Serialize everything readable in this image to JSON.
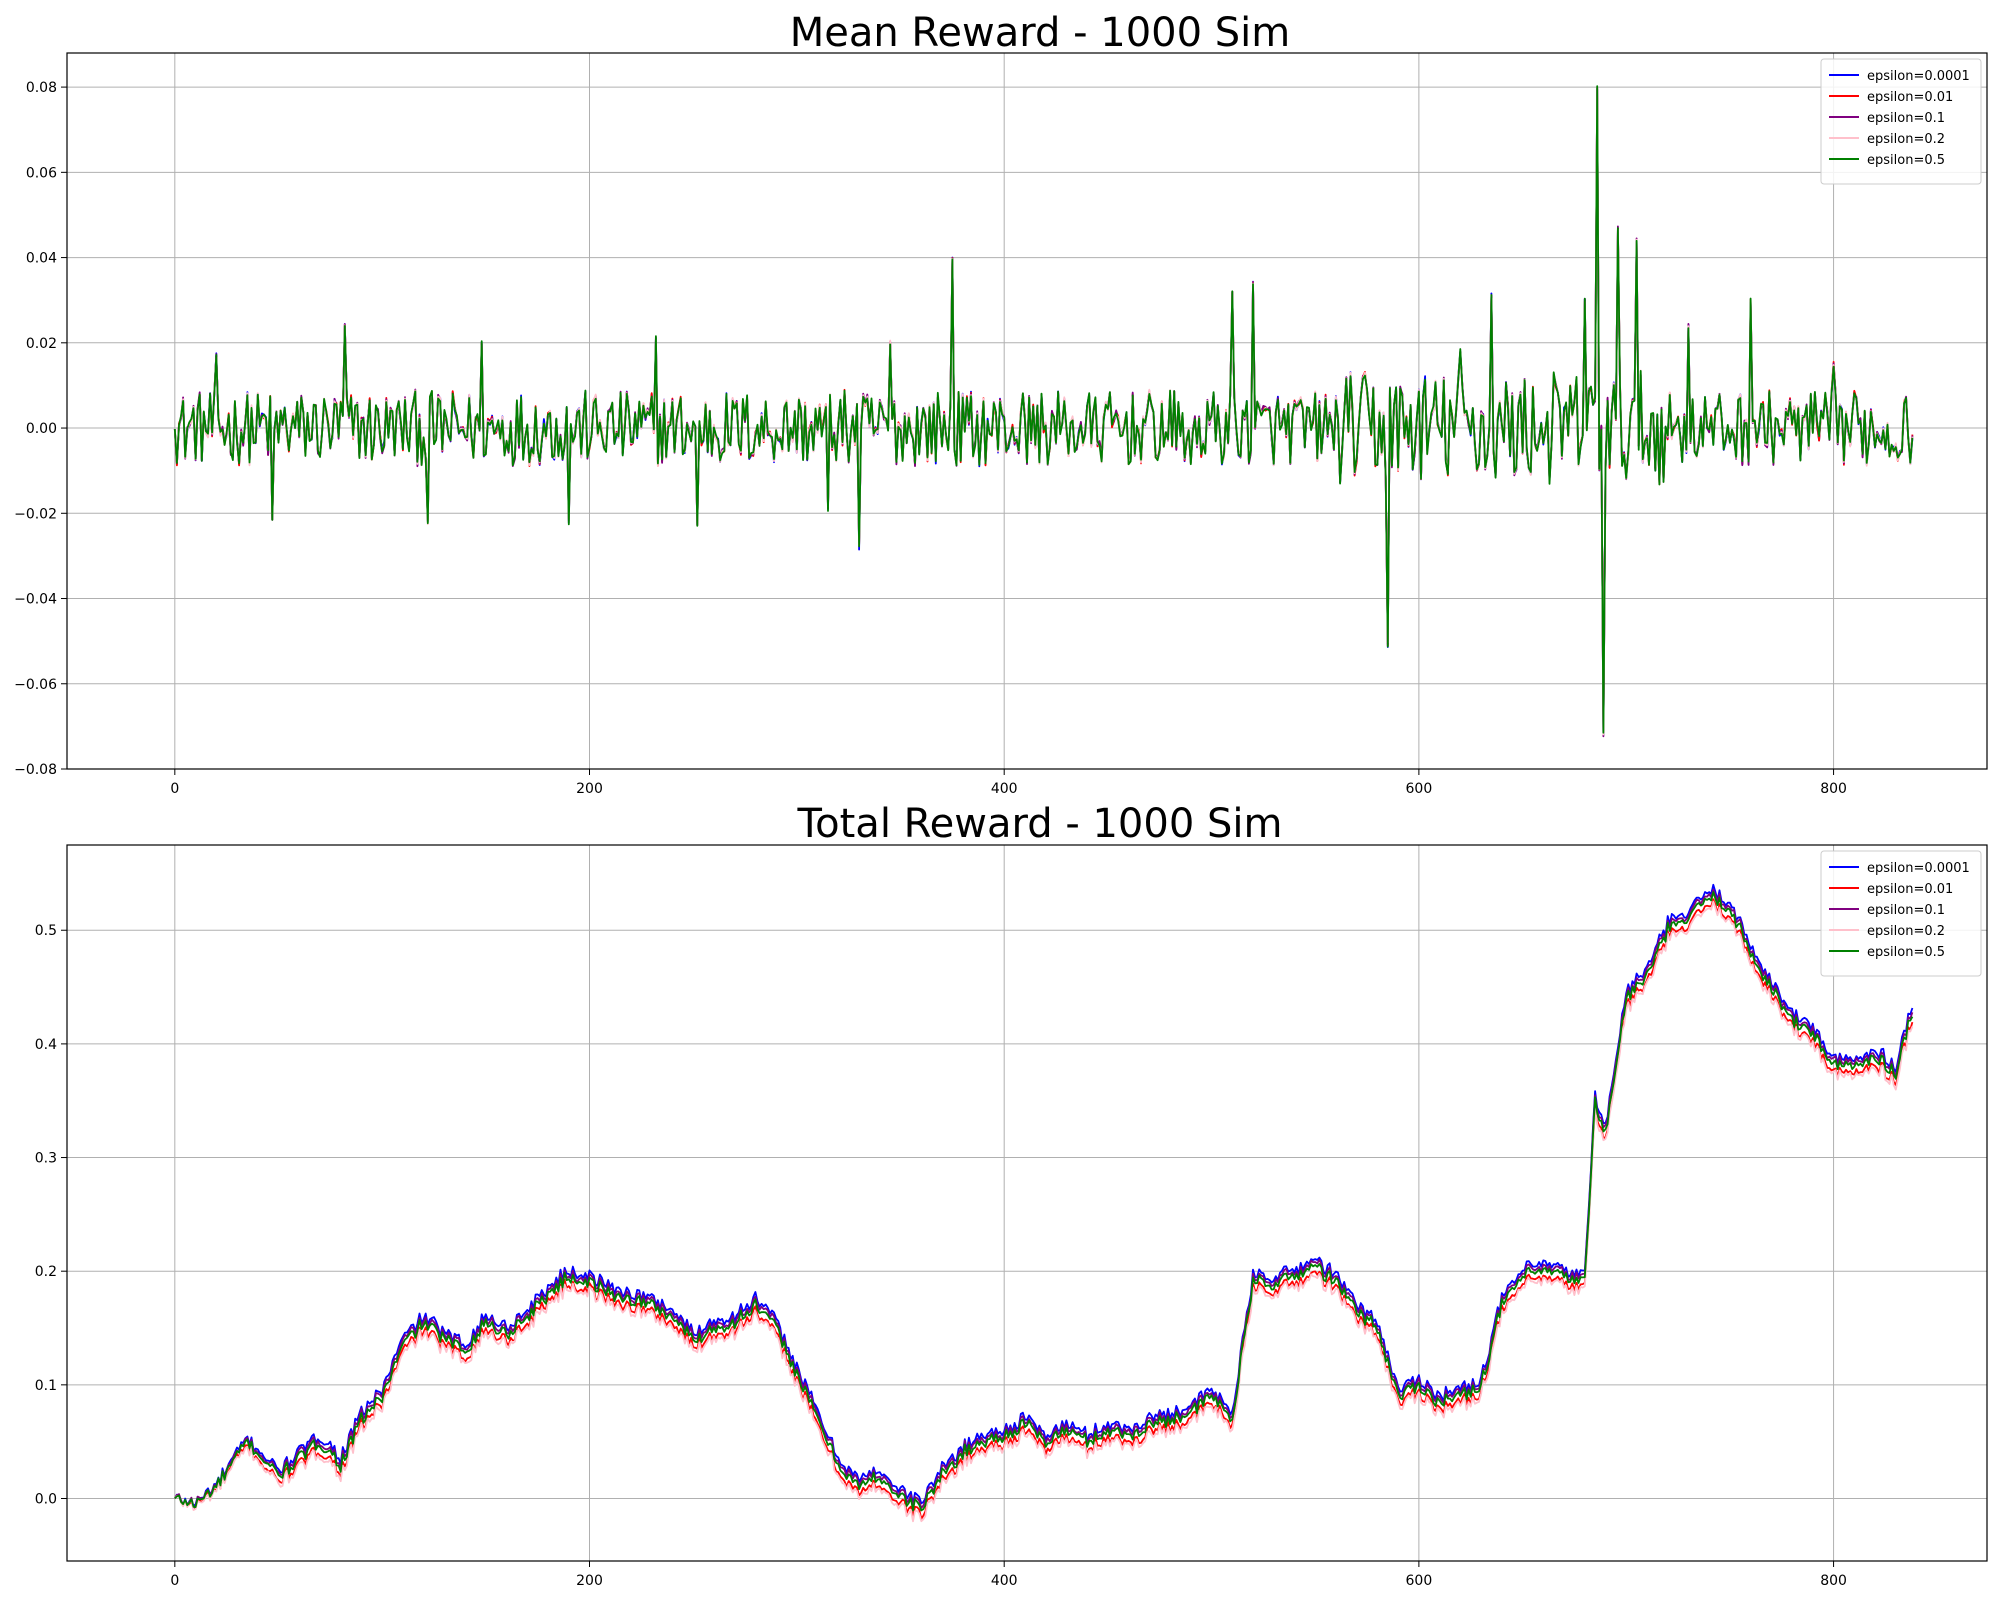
{
  "chart_data": [
    {
      "type": "line",
      "title": "Mean Reward - 1000 Sim",
      "xlabel": "",
      "ylabel": "",
      "xlim": [
        -52,
        874
      ],
      "ylim": [
        -0.08,
        0.088
      ],
      "xticks": [
        0,
        200,
        400,
        600,
        800
      ],
      "yticks": [
        -0.08,
        -0.06,
        -0.04,
        -0.02,
        0.0,
        0.02,
        0.04,
        0.06,
        0.08
      ],
      "ytick_labels": [
        "−0.08",
        "−0.06",
        "−0.04",
        "−0.02",
        "0.00",
        "0.02",
        "0.04",
        "0.06",
        "0.08"
      ],
      "grid": true,
      "legend_position": "top-right",
      "n_points": 839,
      "series": [
        {
          "name": "epsilon=0.0001",
          "color": "#0000ff"
        },
        {
          "name": "epsilon=0.01",
          "color": "#ff0000"
        },
        {
          "name": "epsilon=0.1",
          "color": "#800080"
        },
        {
          "name": "epsilon=0.2",
          "color": "#ffc0cb"
        },
        {
          "name": "epsilon=0.5",
          "color": "#008000"
        }
      ],
      "shape": {
        "x": [
          0,
          20,
          47,
          82,
          122,
          148,
          190,
          232,
          252,
          315,
          330,
          345,
          375,
          490,
          510,
          520,
          585,
          620,
          635,
          680,
          686,
          689,
          696,
          705,
          730,
          760,
          800,
          838
        ],
        "y": [
          0.0,
          0.017,
          -0.022,
          0.024,
          -0.022,
          0.02,
          -0.022,
          0.021,
          -0.023,
          -0.019,
          -0.028,
          0.02,
          0.04,
          -0.008,
          0.032,
          0.034,
          -0.051,
          0.018,
          0.031,
          0.03,
          0.08,
          -0.072,
          0.047,
          0.044,
          0.024,
          0.03,
          0.015,
          -0.002
        ]
      }
    },
    {
      "type": "line",
      "title": "Total Reward - 1000 Sim",
      "xlabel": "",
      "ylabel": "",
      "xlim": [
        -52,
        874
      ],
      "ylim": [
        -0.055,
        0.575
      ],
      "xticks": [
        0,
        200,
        400,
        600,
        800
      ],
      "yticks": [
        0.0,
        0.1,
        0.2,
        0.3,
        0.4,
        0.5
      ],
      "ytick_labels": [
        "0.0",
        "0.1",
        "0.2",
        "0.3",
        "0.4",
        "0.5"
      ],
      "grid": true,
      "legend_position": "top-right",
      "series": [
        {
          "name": "epsilon=0.0001",
          "color": "#0000ff",
          "offset": 0.006
        },
        {
          "name": "epsilon=0.01",
          "color": "#ff0000",
          "offset": -0.006
        },
        {
          "name": "epsilon=0.1",
          "color": "#800080",
          "offset": 0.003
        },
        {
          "name": "epsilon=0.2",
          "color": "#ffc0cb",
          "offset": -0.009
        },
        {
          "name": "epsilon=0.5",
          "color": "#008000",
          "offset": 0.0
        }
      ],
      "x": [
        0,
        10,
        20,
        35,
        50,
        60,
        70,
        80,
        90,
        100,
        110,
        120,
        130,
        140,
        150,
        160,
        170,
        180,
        190,
        200,
        210,
        220,
        230,
        240,
        250,
        260,
        270,
        280,
        290,
        300,
        310,
        320,
        330,
        340,
        350,
        360,
        370,
        380,
        390,
        400,
        410,
        420,
        430,
        440,
        450,
        460,
        470,
        480,
        490,
        500,
        510,
        520,
        530,
        540,
        550,
        560,
        570,
        580,
        590,
        600,
        610,
        620,
        630,
        640,
        650,
        660,
        670,
        680,
        685,
        690,
        700,
        710,
        720,
        730,
        740,
        750,
        760,
        770,
        780,
        790,
        800,
        810,
        820,
        830,
        838
      ],
      "y": [
        0.0,
        -0.005,
        0.01,
        0.05,
        0.02,
        0.035,
        0.05,
        0.03,
        0.07,
        0.09,
        0.135,
        0.155,
        0.14,
        0.13,
        0.155,
        0.145,
        0.16,
        0.18,
        0.195,
        0.19,
        0.18,
        0.175,
        0.17,
        0.16,
        0.14,
        0.15,
        0.155,
        0.17,
        0.15,
        0.11,
        0.07,
        0.03,
        0.01,
        0.02,
        0.0,
        -0.008,
        0.02,
        0.04,
        0.05,
        0.055,
        0.065,
        0.05,
        0.06,
        0.05,
        0.06,
        0.055,
        0.065,
        0.07,
        0.075,
        0.09,
        0.07,
        0.19,
        0.19,
        0.195,
        0.205,
        0.19,
        0.165,
        0.15,
        0.09,
        0.1,
        0.085,
        0.09,
        0.1,
        0.17,
        0.195,
        0.2,
        0.195,
        0.19,
        0.35,
        0.32,
        0.44,
        0.46,
        0.5,
        0.51,
        0.53,
        0.52,
        0.48,
        0.45,
        0.42,
        0.41,
        0.38,
        0.38,
        0.39,
        0.375,
        0.43
      ]
    }
  ]
}
